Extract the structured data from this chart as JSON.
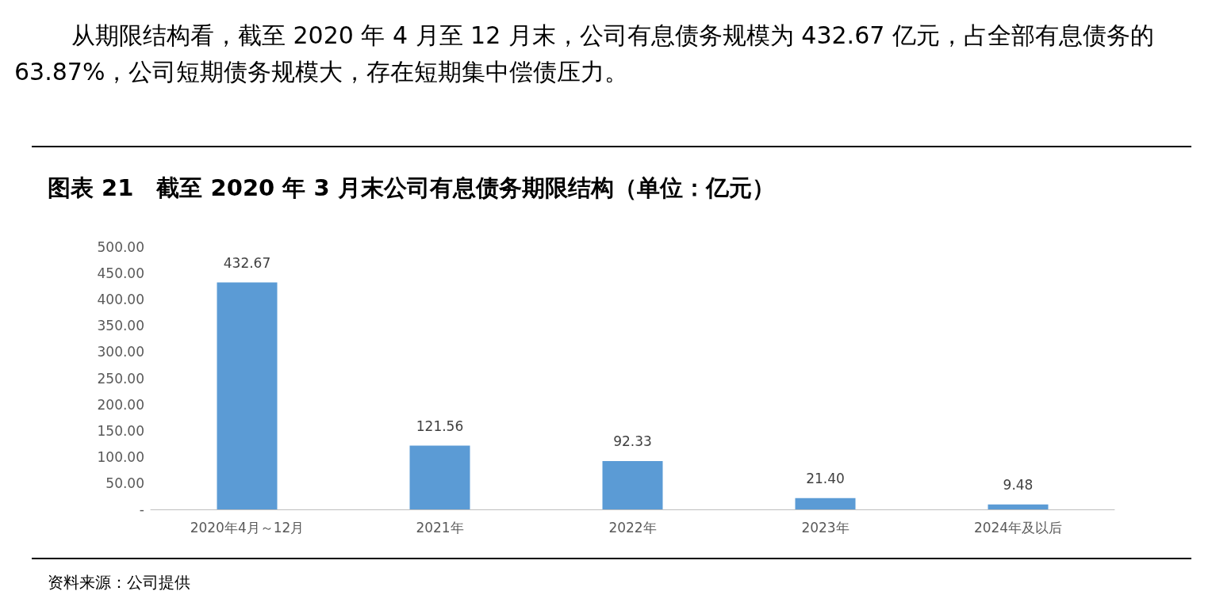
{
  "chart_data": {
    "type": "bar",
    "title": "图表 21　截至 2020 年 3 月末公司有息债务期限结构（单位：亿元）",
    "categories": [
      "2020年4月～12月",
      "2021年",
      "2022年",
      "2023年",
      "2024年及以后"
    ],
    "values": [
      432.67,
      121.56,
      92.33,
      21.4,
      9.48
    ],
    "value_labels": [
      "432.67",
      "121.56",
      "92.33",
      "21.40",
      "9.48"
    ],
    "color": "#5b9bd5",
    "ylim": [
      0,
      500
    ],
    "yticks": [
      {
        "value": 0,
        "label": "-"
      },
      {
        "value": 50,
        "label": "50.00"
      },
      {
        "value": 100,
        "label": "100.00"
      },
      {
        "value": 150,
        "label": "150.00"
      },
      {
        "value": 200,
        "label": "200.00"
      },
      {
        "value": 250,
        "label": "250.00"
      },
      {
        "value": 300,
        "label": "300.00"
      },
      {
        "value": 350,
        "label": "350.00"
      },
      {
        "value": 400,
        "label": "400.00"
      },
      {
        "value": 450,
        "label": "450.00"
      },
      {
        "value": 500,
        "label": "500.00"
      }
    ],
    "grid": false,
    "annotations": [
      "从期限结构看，截至 2020 年 4 月至 12 月末，公司有息债务规模为 432.67 亿元，占全部有息债务的 63.87%，公司短期债务规模大，存在短期集中偿债压力。",
      "资料来源：公司提供"
    ]
  }
}
